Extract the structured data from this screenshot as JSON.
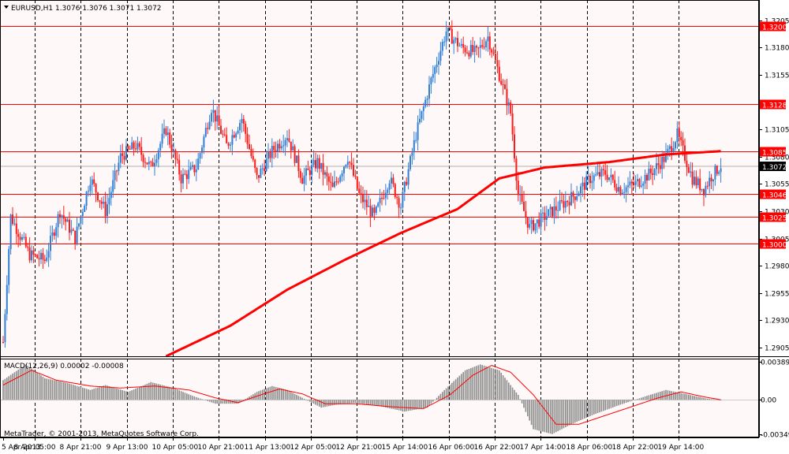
{
  "header": {
    "title": "EURUSD,H1  1.3076 1.3076 1.3071 1.3072",
    "indicator_label": "MACD(12,26,9) 0.00002 -0.00008",
    "copyright": "MetaTrader, © 2001-2013, MetaQuotes Software Corp."
  },
  "colors": {
    "background": "#fff8f8",
    "grid": "#000000",
    "bull_candle": "#2f7fd7",
    "bear_candle": "#ff1a1a",
    "level_line": "#ff0000",
    "moving_average": "#ff0000",
    "histogram": "#8c8c8c",
    "signal": "#ff0000",
    "current_price_tag": "#000000"
  },
  "chart_data": [
    {
      "type": "candlestick",
      "symbol": "EURUSD",
      "timeframe": "H1",
      "ylim": [
        1.2897,
        1.3212
      ],
      "y_ticks": [
        "1.3205",
        "1.3180",
        "1.3155",
        "1.3105",
        "1.3080",
        "1.3055",
        "1.3030",
        "1.3005",
        "1.2980",
        "1.2955",
        "1.2930",
        "1.2905"
      ],
      "x_ticks": [
        "5 Apr 2013",
        "8 Apr 05:00",
        "8 Apr 21:00",
        "9 Apr 13:00",
        "10 Apr 05:00",
        "10 Apr 21:00",
        "11 Apr 13:00",
        "12 Apr 05:00",
        "12 Apr 21:00",
        "15 Apr 14:00",
        "16 Apr 06:00",
        "16 Apr 22:00",
        "17 Apr 14:00",
        "18 Apr 06:00",
        "18 Apr 22:00",
        "19 Apr 14:00"
      ],
      "levels": [
        {
          "label": "1.3200",
          "value": 1.32
        },
        {
          "label": "1.3128",
          "value": 1.3128
        },
        {
          "label": "1.3085",
          "value": 1.3085
        },
        {
          "label": "1.3046",
          "value": 1.3046
        },
        {
          "label": "1.3025",
          "value": 1.3025
        },
        {
          "label": "1.3000",
          "value": 1.3
        }
      ],
      "current_price": {
        "label": "1.3072",
        "value": 1.3072
      },
      "anchors": [
        {
          "i": 0,
          "v": 1.291
        },
        {
          "i": 4,
          "v": 1.3025
        },
        {
          "i": 14,
          "v": 1.299
        },
        {
          "i": 22,
          "v": 1.2985
        },
        {
          "i": 30,
          "v": 1.303
        },
        {
          "i": 38,
          "v": 1.3005
        },
        {
          "i": 46,
          "v": 1.306
        },
        {
          "i": 54,
          "v": 1.303
        },
        {
          "i": 62,
          "v": 1.308
        },
        {
          "i": 70,
          "v": 1.309
        },
        {
          "i": 78,
          "v": 1.307
        },
        {
          "i": 86,
          "v": 1.3105
        },
        {
          "i": 94,
          "v": 1.306
        },
        {
          "i": 102,
          "v": 1.307
        },
        {
          "i": 110,
          "v": 1.3125
        },
        {
          "i": 118,
          "v": 1.309
        },
        {
          "i": 126,
          "v": 1.3115
        },
        {
          "i": 134,
          "v": 1.306
        },
        {
          "i": 142,
          "v": 1.3085
        },
        {
          "i": 150,
          "v": 1.31
        },
        {
          "i": 158,
          "v": 1.306
        },
        {
          "i": 166,
          "v": 1.3075
        },
        {
          "i": 174,
          "v": 1.305
        },
        {
          "i": 182,
          "v": 1.308
        },
        {
          "i": 188,
          "v": 1.3045
        },
        {
          "i": 196,
          "v": 1.3025
        },
        {
          "i": 204,
          "v": 1.306
        },
        {
          "i": 210,
          "v": 1.3035
        },
        {
          "i": 218,
          "v": 1.31
        },
        {
          "i": 226,
          "v": 1.315
        },
        {
          "i": 234,
          "v": 1.3195
        },
        {
          "i": 242,
          "v": 1.318
        },
        {
          "i": 250,
          "v": 1.3175
        },
        {
          "i": 256,
          "v": 1.319
        },
        {
          "i": 262,
          "v": 1.3155
        },
        {
          "i": 268,
          "v": 1.312
        },
        {
          "i": 272,
          "v": 1.3045
        },
        {
          "i": 278,
          "v": 1.3015
        },
        {
          "i": 286,
          "v": 1.3025
        },
        {
          "i": 294,
          "v": 1.3035
        },
        {
          "i": 302,
          "v": 1.3045
        },
        {
          "i": 310,
          "v": 1.306
        },
        {
          "i": 318,
          "v": 1.3065
        },
        {
          "i": 326,
          "v": 1.305
        },
        {
          "i": 334,
          "v": 1.3055
        },
        {
          "i": 342,
          "v": 1.3065
        },
        {
          "i": 350,
          "v": 1.308
        },
        {
          "i": 356,
          "v": 1.31
        },
        {
          "i": 360,
          "v": 1.308
        },
        {
          "i": 364,
          "v": 1.306
        },
        {
          "i": 370,
          "v": 1.305
        },
        {
          "i": 374,
          "v": 1.3062
        },
        {
          "i": 379,
          "v": 1.3072
        }
      ],
      "moving_average": [
        {
          "i": 86,
          "v": 1.2897
        },
        {
          "i": 120,
          "v": 1.2925
        },
        {
          "i": 150,
          "v": 1.2958
        },
        {
          "i": 180,
          "v": 1.2985
        },
        {
          "i": 210,
          "v": 1.301
        },
        {
          "i": 240,
          "v": 1.3032
        },
        {
          "i": 262,
          "v": 1.306
        },
        {
          "i": 286,
          "v": 1.307
        },
        {
          "i": 320,
          "v": 1.3075
        },
        {
          "i": 350,
          "v": 1.3082
        },
        {
          "i": 379,
          "v": 1.3085
        }
      ]
    },
    {
      "type": "macd",
      "params": "12,26,9",
      "ylim": [
        -0.0036,
        0.00395
      ],
      "y_ticks": [
        "0.00389",
        "0.00",
        "-0.00349"
      ],
      "histogram_anchors": [
        {
          "i": 0,
          "v": 0.002
        },
        {
          "i": 12,
          "v": 0.0036
        },
        {
          "i": 22,
          "v": 0.0022
        },
        {
          "i": 34,
          "v": 0.0017
        },
        {
          "i": 46,
          "v": 0.001
        },
        {
          "i": 54,
          "v": 0.0015
        },
        {
          "i": 66,
          "v": 0.0008
        },
        {
          "i": 78,
          "v": 0.0018
        },
        {
          "i": 90,
          "v": 0.0012
        },
        {
          "i": 100,
          "v": 0.0004
        },
        {
          "i": 112,
          "v": -0.0004
        },
        {
          "i": 124,
          "v": -0.0004
        },
        {
          "i": 134,
          "v": 0.0008
        },
        {
          "i": 142,
          "v": 0.0014
        },
        {
          "i": 150,
          "v": 0.001
        },
        {
          "i": 160,
          "v": 0.0
        },
        {
          "i": 168,
          "v": -0.0008
        },
        {
          "i": 176,
          "v": -0.0005
        },
        {
          "i": 186,
          "v": -0.0003
        },
        {
          "i": 200,
          "v": -0.0007
        },
        {
          "i": 212,
          "v": -0.0012
        },
        {
          "i": 224,
          "v": -0.0008
        },
        {
          "i": 232,
          "v": 0.0008
        },
        {
          "i": 244,
          "v": 0.003
        },
        {
          "i": 252,
          "v": 0.0036
        },
        {
          "i": 262,
          "v": 0.003
        },
        {
          "i": 272,
          "v": 0.0005
        },
        {
          "i": 280,
          "v": -0.003
        },
        {
          "i": 290,
          "v": -0.0035
        },
        {
          "i": 300,
          "v": -0.0025
        },
        {
          "i": 312,
          "v": -0.0015
        },
        {
          "i": 326,
          "v": -0.0005
        },
        {
          "i": 340,
          "v": 0.0004
        },
        {
          "i": 350,
          "v": 0.001
        },
        {
          "i": 360,
          "v": 0.0006
        },
        {
          "i": 372,
          "v": 0.0001
        },
        {
          "i": 379,
          "v": 0.0
        }
      ],
      "signal_anchors": [
        {
          "i": 0,
          "v": 0.0015
        },
        {
          "i": 15,
          "v": 0.003
        },
        {
          "i": 28,
          "v": 0.002
        },
        {
          "i": 46,
          "v": 0.0014
        },
        {
          "i": 62,
          "v": 0.0012
        },
        {
          "i": 80,
          "v": 0.0014
        },
        {
          "i": 98,
          "v": 0.001
        },
        {
          "i": 112,
          "v": 0.0002
        },
        {
          "i": 124,
          "v": -0.0003
        },
        {
          "i": 136,
          "v": 0.0005
        },
        {
          "i": 146,
          "v": 0.0011
        },
        {
          "i": 158,
          "v": 0.0006
        },
        {
          "i": 170,
          "v": -0.0004
        },
        {
          "i": 186,
          "v": -0.0004
        },
        {
          "i": 204,
          "v": -0.0007
        },
        {
          "i": 222,
          "v": -0.0009
        },
        {
          "i": 236,
          "v": 0.0005
        },
        {
          "i": 248,
          "v": 0.0025
        },
        {
          "i": 258,
          "v": 0.0035
        },
        {
          "i": 268,
          "v": 0.0028
        },
        {
          "i": 280,
          "v": 0.0005
        },
        {
          "i": 292,
          "v": -0.0025
        },
        {
          "i": 304,
          "v": -0.0025
        },
        {
          "i": 318,
          "v": -0.0016
        },
        {
          "i": 332,
          "v": -0.0007
        },
        {
          "i": 346,
          "v": 0.0002
        },
        {
          "i": 358,
          "v": 0.0008
        },
        {
          "i": 370,
          "v": 0.0003
        },
        {
          "i": 379,
          "v": 0.0
        }
      ]
    }
  ]
}
